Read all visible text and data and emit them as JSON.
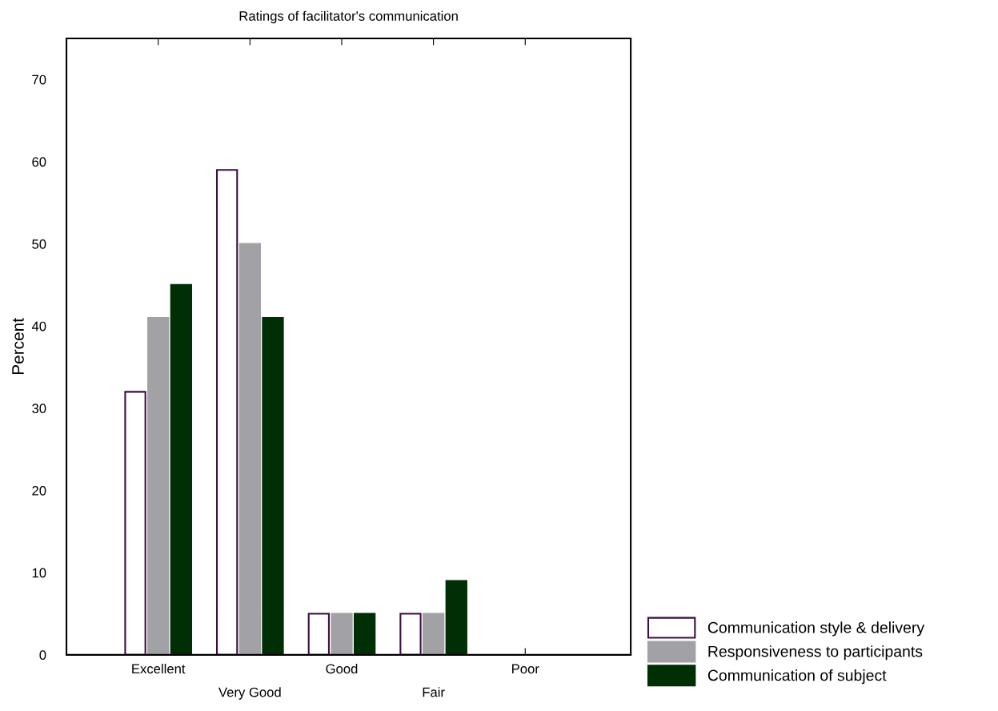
{
  "chart_data": {
    "type": "bar",
    "title": "Ratings of facilitator's communication",
    "ylabel": "Percent",
    "categories": [
      "Excellent",
      "Very Good",
      "Good",
      "Fair",
      "Poor"
    ],
    "series": [
      {
        "name": "Communication style & delivery",
        "color": "#ffffff",
        "values": [
          32,
          59,
          5,
          5,
          0
        ]
      },
      {
        "name": "Responsiveness to participants",
        "color": "#a2a1a6",
        "values": [
          41,
          50,
          5,
          5,
          0
        ]
      },
      {
        "name": "Communication of subject",
        "color": "#002f05",
        "values": [
          45,
          41,
          5,
          9,
          0
        ]
      }
    ],
    "ylim": [
      0,
      75
    ],
    "yticks": [
      0,
      10,
      20,
      30,
      40,
      50,
      60,
      70
    ],
    "grid": false,
    "legend": "bottom right"
  }
}
